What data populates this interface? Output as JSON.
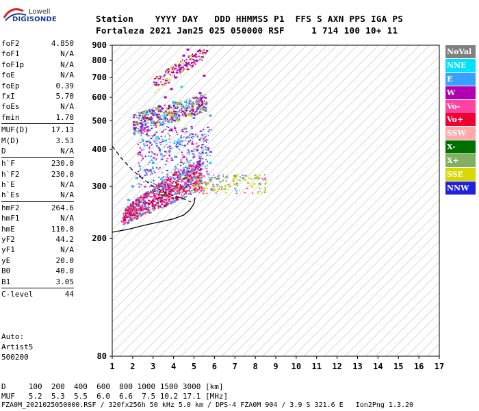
{
  "logo": {
    "line1": "Lowell",
    "line2": "DIGISONDE"
  },
  "header": {
    "line1": "Station    YYYY DAY   DDD HHMMSS P1  FFS S AXN PPS IGA PS",
    "line2": "Fortaleza 2021 Jan25 025 050000 RSF     1 714 100 10+ 11"
  },
  "params": [
    {
      "label": "foF2",
      "value": "4.850"
    },
    {
      "label": "foF1",
      "value": "N/A"
    },
    {
      "label": "foF1p",
      "value": "N/A"
    },
    {
      "label": "foE",
      "value": "N/A"
    },
    {
      "label": "foEp",
      "value": "0.39"
    },
    {
      "label": "fxI",
      "value": "5.70"
    },
    {
      "label": "foEs",
      "value": "N/A"
    },
    {
      "label": "fmin",
      "value": "1.70"
    },
    {
      "sep": true
    },
    {
      "label": "MUF(D)",
      "value": "17.13"
    },
    {
      "label": "M(D)",
      "value": "3.53"
    },
    {
      "label": "D",
      "value": "N/A"
    },
    {
      "sep": true
    },
    {
      "label": "h`F",
      "value": "230.0"
    },
    {
      "label": "h`F2",
      "value": "230.0"
    },
    {
      "label": "h`E",
      "value": "N/A"
    },
    {
      "label": "h`Es",
      "value": "N/A"
    },
    {
      "sep": true
    },
    {
      "label": "hmF2",
      "value": "264.6"
    },
    {
      "label": "hmF1",
      "value": "N/A"
    },
    {
      "label": "hmE",
      "value": "110.0"
    },
    {
      "label": "yF2",
      "value": "44.2"
    },
    {
      "label": "yF1",
      "value": "N/A"
    },
    {
      "label": "yE",
      "value": "20.0"
    },
    {
      "label": "B0",
      "value": "40.0"
    },
    {
      "label": "B1",
      "value": "3.05"
    },
    {
      "sep": true
    },
    {
      "label": "C-level",
      "value": "44"
    }
  ],
  "auto": {
    "line1": "Auto:",
    "line2": "Artist5",
    "line3": "500200"
  },
  "legend": [
    {
      "label": "NoVal",
      "color": "#808080"
    },
    {
      "label": "NNE",
      "color": "#00e0ff"
    },
    {
      "label": "E",
      "color": "#3aa0ff"
    },
    {
      "label": "W",
      "color": "#b000b0"
    },
    {
      "label": "Vo-",
      "color": "#ff44a0"
    },
    {
      "label": "Vo+",
      "color": "#ee0033"
    },
    {
      "label": "SSW",
      "color": "#ffaaaa"
    },
    {
      "label": "X-",
      "color": "#007000"
    },
    {
      "label": "X+",
      "color": "#80b060"
    },
    {
      "label": "SSE",
      "color": "#d8d800"
    },
    {
      "label": "NNW",
      "color": "#2020e0"
    }
  ],
  "footer": {
    "line1": "D     100  200  400  600  800 1000 1500 3000 [km]",
    "line2": "MUF   5.2  5.3  5.5  6.0  6.6  7.5 10.2 17.1 [MHz]",
    "line3": "FZA0M_2021025050000.RSF / 320fx256h 50 kHz 5.0 km / DPS-4 FZA0M 904 / 3.9 S 321.6 E   Ion2Png 1.3.20"
  },
  "chart_data": {
    "type": "scatter",
    "title": "",
    "xlabel": "",
    "ylabel": "",
    "xlim": [
      1,
      17
    ],
    "ylim": [
      80,
      900
    ],
    "y_scale": "log",
    "x_ticks": [
      1,
      2,
      3,
      4,
      5,
      6,
      7,
      8,
      9,
      10,
      11,
      12,
      13,
      14,
      15,
      16,
      17
    ],
    "y_ticks": [
      80,
      200,
      300,
      400,
      500,
      600,
      700,
      800,
      900
    ],
    "grid": "diagonal",
    "series": [
      {
        "name": "Vo+",
        "color": "#ee0033",
        "points": [
          [
            1.6,
            232
          ],
          [
            2.0,
            240
          ],
          [
            2.4,
            250
          ],
          [
            2.8,
            262
          ],
          [
            3.0,
            268
          ],
          [
            3.3,
            275
          ],
          [
            3.6,
            283
          ],
          [
            3.9,
            292
          ],
          [
            4.2,
            305
          ],
          [
            4.5,
            318
          ],
          [
            4.8,
            325
          ],
          [
            5.0,
            330
          ],
          [
            5.2,
            322
          ],
          [
            4.4,
            300
          ],
          [
            3.7,
            280
          ]
        ]
      },
      {
        "name": "W",
        "color": "#b000b0",
        "points": [
          [
            3.0,
            540
          ],
          [
            3.3,
            560
          ],
          [
            3.6,
            600
          ],
          [
            3.9,
            640
          ],
          [
            4.1,
            700
          ],
          [
            4.3,
            770
          ],
          [
            4.5,
            830
          ],
          [
            4.7,
            870
          ],
          [
            2.1,
            470
          ],
          [
            2.4,
            490
          ],
          [
            2.7,
            510
          ],
          [
            5.5,
            710
          ],
          [
            5.3,
            620
          ]
        ]
      },
      {
        "name": "E",
        "color": "#3aa0ff",
        "points": [
          [
            2.0,
            300
          ],
          [
            2.2,
            320
          ],
          [
            2.6,
            340
          ],
          [
            3.0,
            360
          ],
          [
            3.4,
            385
          ],
          [
            3.8,
            395
          ],
          [
            4.2,
            420
          ],
          [
            4.6,
            470
          ],
          [
            5.0,
            510
          ],
          [
            5.8,
            520
          ],
          [
            1.8,
            270
          ]
        ]
      },
      {
        "name": "NNE",
        "color": "#00e0ff",
        "points": [
          [
            3.2,
            440
          ],
          [
            3.6,
            520
          ],
          [
            4.0,
            580
          ],
          [
            4.4,
            650
          ],
          [
            4.7,
            560
          ],
          [
            5.8,
            360
          ],
          [
            2.5,
            430
          ]
        ]
      },
      {
        "name": "SSE",
        "color": "#d8d800",
        "points": [
          [
            5.0,
            300
          ],
          [
            5.5,
            295
          ],
          [
            6.0,
            292
          ],
          [
            6.5,
            295
          ],
          [
            7.0,
            305
          ],
          [
            3.9,
            520
          ],
          [
            4.2,
            500
          ]
        ]
      },
      {
        "name": "X+",
        "color": "#80b060",
        "points": [
          [
            5.8,
            315
          ],
          [
            6.2,
            318
          ],
          [
            6.6,
            322
          ],
          [
            7.0,
            326
          ],
          [
            7.4,
            320
          ]
        ]
      },
      {
        "name": "Vo-",
        "color": "#ff44a0",
        "points": [
          [
            1.5,
            228
          ],
          [
            2.3,
            250
          ],
          [
            3.1,
            275
          ],
          [
            4.0,
            300
          ],
          [
            4.9,
            340
          ]
        ]
      },
      {
        "name": "X-",
        "color": "#007000",
        "points": [
          [
            3.5,
            280
          ],
          [
            4.1,
            300
          ],
          [
            4.6,
            320
          ]
        ]
      }
    ]
  }
}
